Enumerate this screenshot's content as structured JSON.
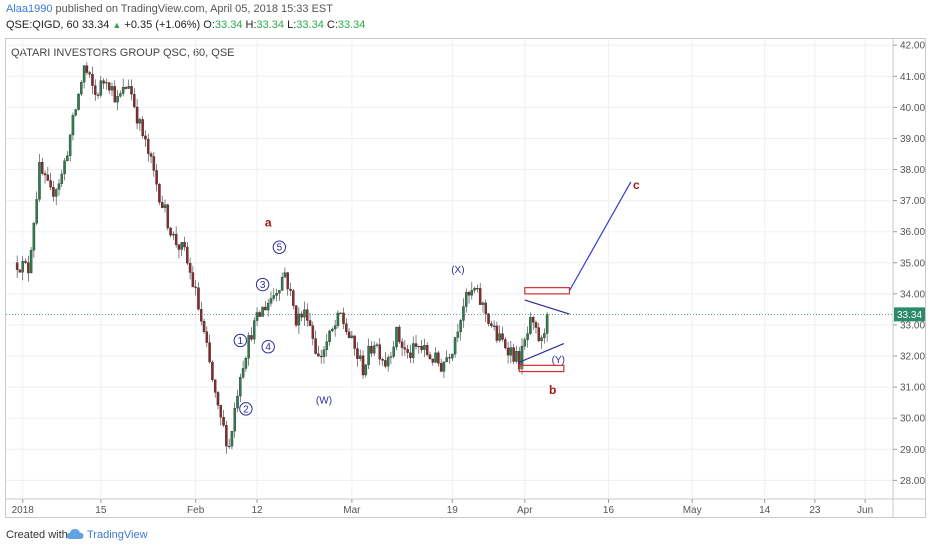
{
  "header": {
    "user": "Alaa1990",
    "published": " published on TradingView.com, April 05, 2018 15:33 EST",
    "symbol": "QSE:QIGD, 60",
    "price": "33.34",
    "arrow": "▲",
    "change": "+0.35 (+1.06%)",
    "o_label": "O:",
    "o_value": "33.34",
    "h_label": "H:",
    "h_value": "33.34",
    "l_label": "L:",
    "l_value": "33.34",
    "c_label": "C:",
    "c_value": "33.34"
  },
  "footer": {
    "created_with": "Created with",
    "brand": "TradingView"
  },
  "colors": {
    "up": "#2e7d4f",
    "down": "#8b2a2a",
    "wave_blue": "#2b2b9a",
    "wave_red": "#a01818",
    "last_price_bg": "#2b8a6a",
    "box_red": "#d32f2f"
  },
  "chart_data": {
    "type": "candlestick",
    "title": "QATARI INVESTORS GROUP QSC, 60, QSE",
    "ylim": [
      27.4,
      42.2
    ],
    "y_ticks": [
      28,
      29,
      30,
      31,
      32,
      33,
      34,
      35,
      36,
      37,
      38,
      39,
      40,
      41,
      42
    ],
    "y_tick_labels": [
      "28.00",
      "29.00",
      "30.00",
      "31.00",
      "32.00",
      "33.00",
      "34.00",
      "35.00",
      "36.00",
      "37.00",
      "38.00",
      "39.00",
      "40.00",
      "41.00",
      "42.00"
    ],
    "x_ticks": [
      {
        "label": "2018",
        "date": "2018-01-01"
      },
      {
        "label": "15",
        "date": "2018-01-15"
      },
      {
        "label": "Feb",
        "date": "2018-02-01"
      },
      {
        "label": "12",
        "date": "2018-02-12"
      },
      {
        "label": "Mar",
        "date": "2018-03-01"
      },
      {
        "label": "19",
        "date": "2018-03-19"
      },
      {
        "label": "Apr",
        "date": "2018-04-01"
      },
      {
        "label": "16",
        "date": "2018-04-16"
      },
      {
        "label": "May",
        "date": "2018-05-01"
      },
      {
        "label": "14",
        "date": "2018-05-14"
      },
      {
        "label": "23",
        "date": "2018-05-23"
      },
      {
        "label": "Jun",
        "date": "2018-06-01"
      }
    ],
    "last_price": 33.34,
    "last_price_label": "33.34",
    "price_path": [
      {
        "date": "2017-12-31",
        "price": 35.0
      },
      {
        "date": "2018-01-02",
        "price": 34.8
      },
      {
        "date": "2018-01-04",
        "price": 38.0
      },
      {
        "date": "2018-01-06",
        "price": 37.2
      },
      {
        "date": "2018-01-08",
        "price": 37.8
      },
      {
        "date": "2018-01-10",
        "price": 39.5
      },
      {
        "date": "2018-01-12",
        "price": 41.3
      },
      {
        "date": "2018-01-14",
        "price": 40.4
      },
      {
        "date": "2018-01-16",
        "price": 41.0
      },
      {
        "date": "2018-01-18",
        "price": 40.2
      },
      {
        "date": "2018-01-20",
        "price": 40.8
      },
      {
        "date": "2018-01-22",
        "price": 39.4
      },
      {
        "date": "2018-01-24",
        "price": 38.2
      },
      {
        "date": "2018-01-26",
        "price": 36.9
      },
      {
        "date": "2018-01-28",
        "price": 35.8
      },
      {
        "date": "2018-01-30",
        "price": 35.3
      },
      {
        "date": "2018-02-01",
        "price": 34.0
      },
      {
        "date": "2018-02-03",
        "price": 32.2
      },
      {
        "date": "2018-02-05",
        "price": 30.2
      },
      {
        "date": "2018-02-07",
        "price": 29.1
      },
      {
        "date": "2018-02-09",
        "price": 31.5
      },
      {
        "date": "2018-02-11",
        "price": 32.8
      },
      {
        "date": "2018-02-13",
        "price": 33.5
      },
      {
        "date": "2018-02-15",
        "price": 34.0
      },
      {
        "date": "2018-02-17",
        "price": 34.7
      },
      {
        "date": "2018-02-19",
        "price": 33.2
      },
      {
        "date": "2018-02-21",
        "price": 33.4
      },
      {
        "date": "2018-02-23",
        "price": 31.9
      },
      {
        "date": "2018-02-25",
        "price": 32.6
      },
      {
        "date": "2018-02-27",
        "price": 33.3
      },
      {
        "date": "2018-03-01",
        "price": 32.4
      },
      {
        "date": "2018-03-03",
        "price": 31.6
      },
      {
        "date": "2018-03-05",
        "price": 32.5
      },
      {
        "date": "2018-03-07",
        "price": 31.8
      },
      {
        "date": "2018-03-09",
        "price": 32.7
      },
      {
        "date": "2018-03-11",
        "price": 32.0
      },
      {
        "date": "2018-03-13",
        "price": 32.3
      },
      {
        "date": "2018-03-15",
        "price": 32.0
      },
      {
        "date": "2018-03-17",
        "price": 31.7
      },
      {
        "date": "2018-03-19",
        "price": 32.3
      },
      {
        "date": "2018-03-21",
        "price": 33.7
      },
      {
        "date": "2018-03-23",
        "price": 34.1
      },
      {
        "date": "2018-03-25",
        "price": 33.4
      },
      {
        "date": "2018-03-27",
        "price": 32.6
      },
      {
        "date": "2018-03-29",
        "price": 32.3
      },
      {
        "date": "2018-03-31",
        "price": 31.8
      },
      {
        "date": "2018-04-02",
        "price": 33.0
      },
      {
        "date": "2018-04-04",
        "price": 32.4
      },
      {
        "date": "2018-04-05",
        "price": 33.34
      }
    ],
    "wave_labels": [
      {
        "text": "1",
        "date": "2018-02-09",
        "price": 32.5,
        "circled": true
      },
      {
        "text": "2",
        "date": "2018-02-10",
        "price": 30.3,
        "circled": true
      },
      {
        "text": "3",
        "date": "2018-02-13",
        "price": 34.3,
        "circled": true
      },
      {
        "text": "4",
        "date": "2018-02-14",
        "price": 32.3,
        "circled": true
      },
      {
        "text": "5",
        "date": "2018-02-16",
        "price": 35.5,
        "circled": true
      },
      {
        "text": "a",
        "date": "2018-02-14",
        "price": 36.3,
        "circled": false
      },
      {
        "text": "(W)",
        "date": "2018-02-24",
        "price": 30.6,
        "circled": false
      },
      {
        "text": "(X)",
        "date": "2018-03-20",
        "price": 34.8,
        "circled": false
      },
      {
        "text": "(Y)",
        "date": "2018-04-07",
        "price": 31.9,
        "circled": false
      },
      {
        "text": "b",
        "date": "2018-04-06",
        "price": 30.9,
        "circled": false
      },
      {
        "text": "c",
        "date": "2018-04-21",
        "price": 37.5,
        "circled": false
      }
    ],
    "triangle_lines": [
      {
        "from": {
          "date": "2018-04-01",
          "price": 33.8
        },
        "to": {
          "date": "2018-04-09",
          "price": 33.35
        }
      },
      {
        "from": {
          "date": "2018-03-31",
          "price": 31.8
        },
        "to": {
          "date": "2018-04-08",
          "price": 32.4
        }
      }
    ],
    "projection_line": {
      "from": {
        "date": "2018-04-09",
        "price": 34.1
      },
      "to": {
        "date": "2018-04-20",
        "price": 37.6
      }
    },
    "target_boxes": [
      {
        "date_from": "2018-04-01",
        "date_to": "2018-04-09",
        "price_low": 34.0,
        "price_high": 34.2
      },
      {
        "date_from": "2018-03-31",
        "date_to": "2018-04-08",
        "price_low": 31.5,
        "price_high": 31.7
      }
    ]
  }
}
